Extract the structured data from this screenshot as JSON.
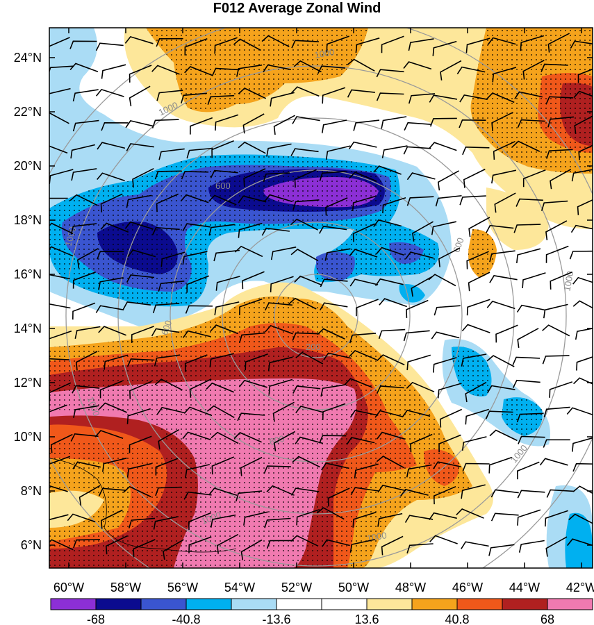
{
  "title": "F012 Average Zonal Wind",
  "map": {
    "lat_labels": [
      "24°N",
      "22°N",
      "20°N",
      "18°N",
      "16°N",
      "14°N",
      "12°N",
      "10°N",
      "8°N",
      "6°N"
    ],
    "lon_labels": [
      "60°W",
      "58°W",
      "56°W",
      "54°W",
      "52°W",
      "50°W",
      "48°W",
      "46°W",
      "44°W",
      "42°W"
    ],
    "range_ring_labels": [
      "200",
      "600",
      "600",
      "600",
      "600",
      "1000",
      "1000",
      "1000",
      "1000",
      "1000",
      "1000",
      "1000",
      "1000"
    ]
  },
  "colorbar": {
    "colors": [
      "#8c2fd6",
      "#0b0b8f",
      "#3a55d0",
      "#00b0f0",
      "#aadcf5",
      "#ffffff",
      "#ffffff",
      "#fde79a",
      "#f5a31c",
      "#f0581a",
      "#b02020",
      "#f07ab0"
    ],
    "labels": [
      "-68",
      "-40.8",
      "-13.6",
      "13.6",
      "40.8",
      "68"
    ]
  }
}
